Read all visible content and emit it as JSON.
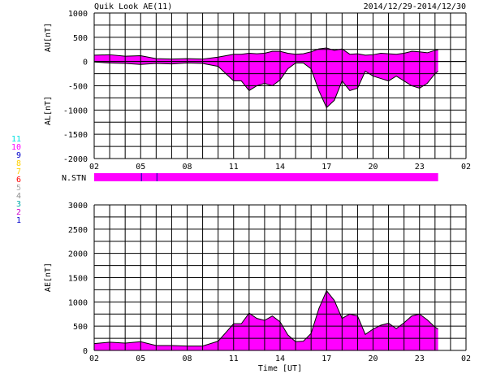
{
  "header": {
    "title": "Quik Look AE(11)",
    "date_range": "2014/12/29-2014/12/30"
  },
  "colors": {
    "fill": "#ff00ff",
    "axis": "#000000",
    "background": "#ffffff"
  },
  "station_legend": [
    {
      "label": "11",
      "color": "#00e0e0"
    },
    {
      "label": "10",
      "color": "#ff00ff"
    },
    {
      "label": "9",
      "color": "#0000cc"
    },
    {
      "label": "8",
      "color": "#ffd000"
    },
    {
      "label": "7",
      "color": "#ffd000"
    },
    {
      "label": "6",
      "color": "#ff0000"
    },
    {
      "label": "5",
      "color": "#aaaaaa"
    },
    {
      "label": "4",
      "color": "#909090"
    },
    {
      "label": "3",
      "color": "#00aaaa"
    },
    {
      "label": "2",
      "color": "#cc00cc"
    },
    {
      "label": "1",
      "color": "#0000cc"
    }
  ],
  "x_axis": {
    "tick_labels": [
      "02",
      "05",
      "08",
      "11",
      "14",
      "17",
      "20",
      "23",
      "02"
    ],
    "xlabel": "Time [UT]"
  },
  "nstn": {
    "label": "N.STN",
    "markers_hours": [
      5.05,
      6.05
    ],
    "bar_end_hour": 24.2
  },
  "chart_data": [
    {
      "type": "area",
      "name": "AU/AL",
      "ylabel_upper": "AU[nT]",
      "ylabel_lower": "AL[nT]",
      "ylim": [
        -2000,
        1000
      ],
      "yticks": [
        1000,
        500,
        0,
        -500,
        -1000,
        -1500,
        -2000
      ],
      "xlim_hours": [
        2,
        26
      ],
      "grid": true,
      "x_hours": [
        2,
        3,
        4,
        5,
        6,
        7,
        8,
        9,
        10,
        10.5,
        11,
        11.5,
        12,
        12.5,
        13,
        13.5,
        14,
        14.5,
        15,
        15.5,
        16,
        16.5,
        17,
        17.5,
        18,
        18.5,
        19,
        19.5,
        20,
        20.5,
        21,
        21.5,
        22,
        22.5,
        23,
        23.5,
        24,
        24.2
      ],
      "au": [
        130,
        140,
        110,
        120,
        60,
        50,
        60,
        50,
        90,
        120,
        150,
        150,
        170,
        160,
        170,
        210,
        210,
        170,
        150,
        160,
        200,
        260,
        280,
        230,
        260,
        150,
        160,
        130,
        140,
        170,
        160,
        150,
        170,
        210,
        200,
        180,
        230,
        240
      ],
      "al": [
        -10,
        -30,
        -40,
        -60,
        -40,
        -50,
        -30,
        -40,
        -100,
        -250,
        -400,
        -400,
        -600,
        -500,
        -450,
        -500,
        -380,
        -150,
        -30,
        -30,
        -150,
        -600,
        -950,
        -800,
        -400,
        -600,
        -550,
        -200,
        -300,
        -350,
        -400,
        -300,
        -400,
        -500,
        -550,
        -450,
        -250,
        -200
      ]
    },
    {
      "type": "area",
      "name": "AE",
      "ylabel": "AE[nT]",
      "ylim": [
        0,
        3000
      ],
      "yticks": [
        3000,
        2500,
        2000,
        1500,
        1000,
        500,
        0
      ],
      "xlim_hours": [
        2,
        26
      ],
      "grid": true,
      "x_hours": [
        2,
        3,
        4,
        5,
        6,
        7,
        8,
        9,
        10,
        10.5,
        11,
        11.5,
        12,
        12.5,
        13,
        13.5,
        14,
        14.5,
        15,
        15.5,
        16,
        16.5,
        17,
        17.5,
        18,
        18.5,
        19,
        19.5,
        20,
        20.5,
        21,
        21.5,
        22,
        22.5,
        23,
        23.5,
        24,
        24.2
      ],
      "ae": [
        140,
        170,
        150,
        180,
        100,
        100,
        90,
        90,
        190,
        370,
        550,
        550,
        770,
        660,
        620,
        710,
        590,
        320,
        180,
        190,
        350,
        860,
        1230,
        1030,
        660,
        750,
        710,
        330,
        440,
        520,
        560,
        450,
        570,
        710,
        750,
        630,
        480,
        440
      ]
    }
  ]
}
